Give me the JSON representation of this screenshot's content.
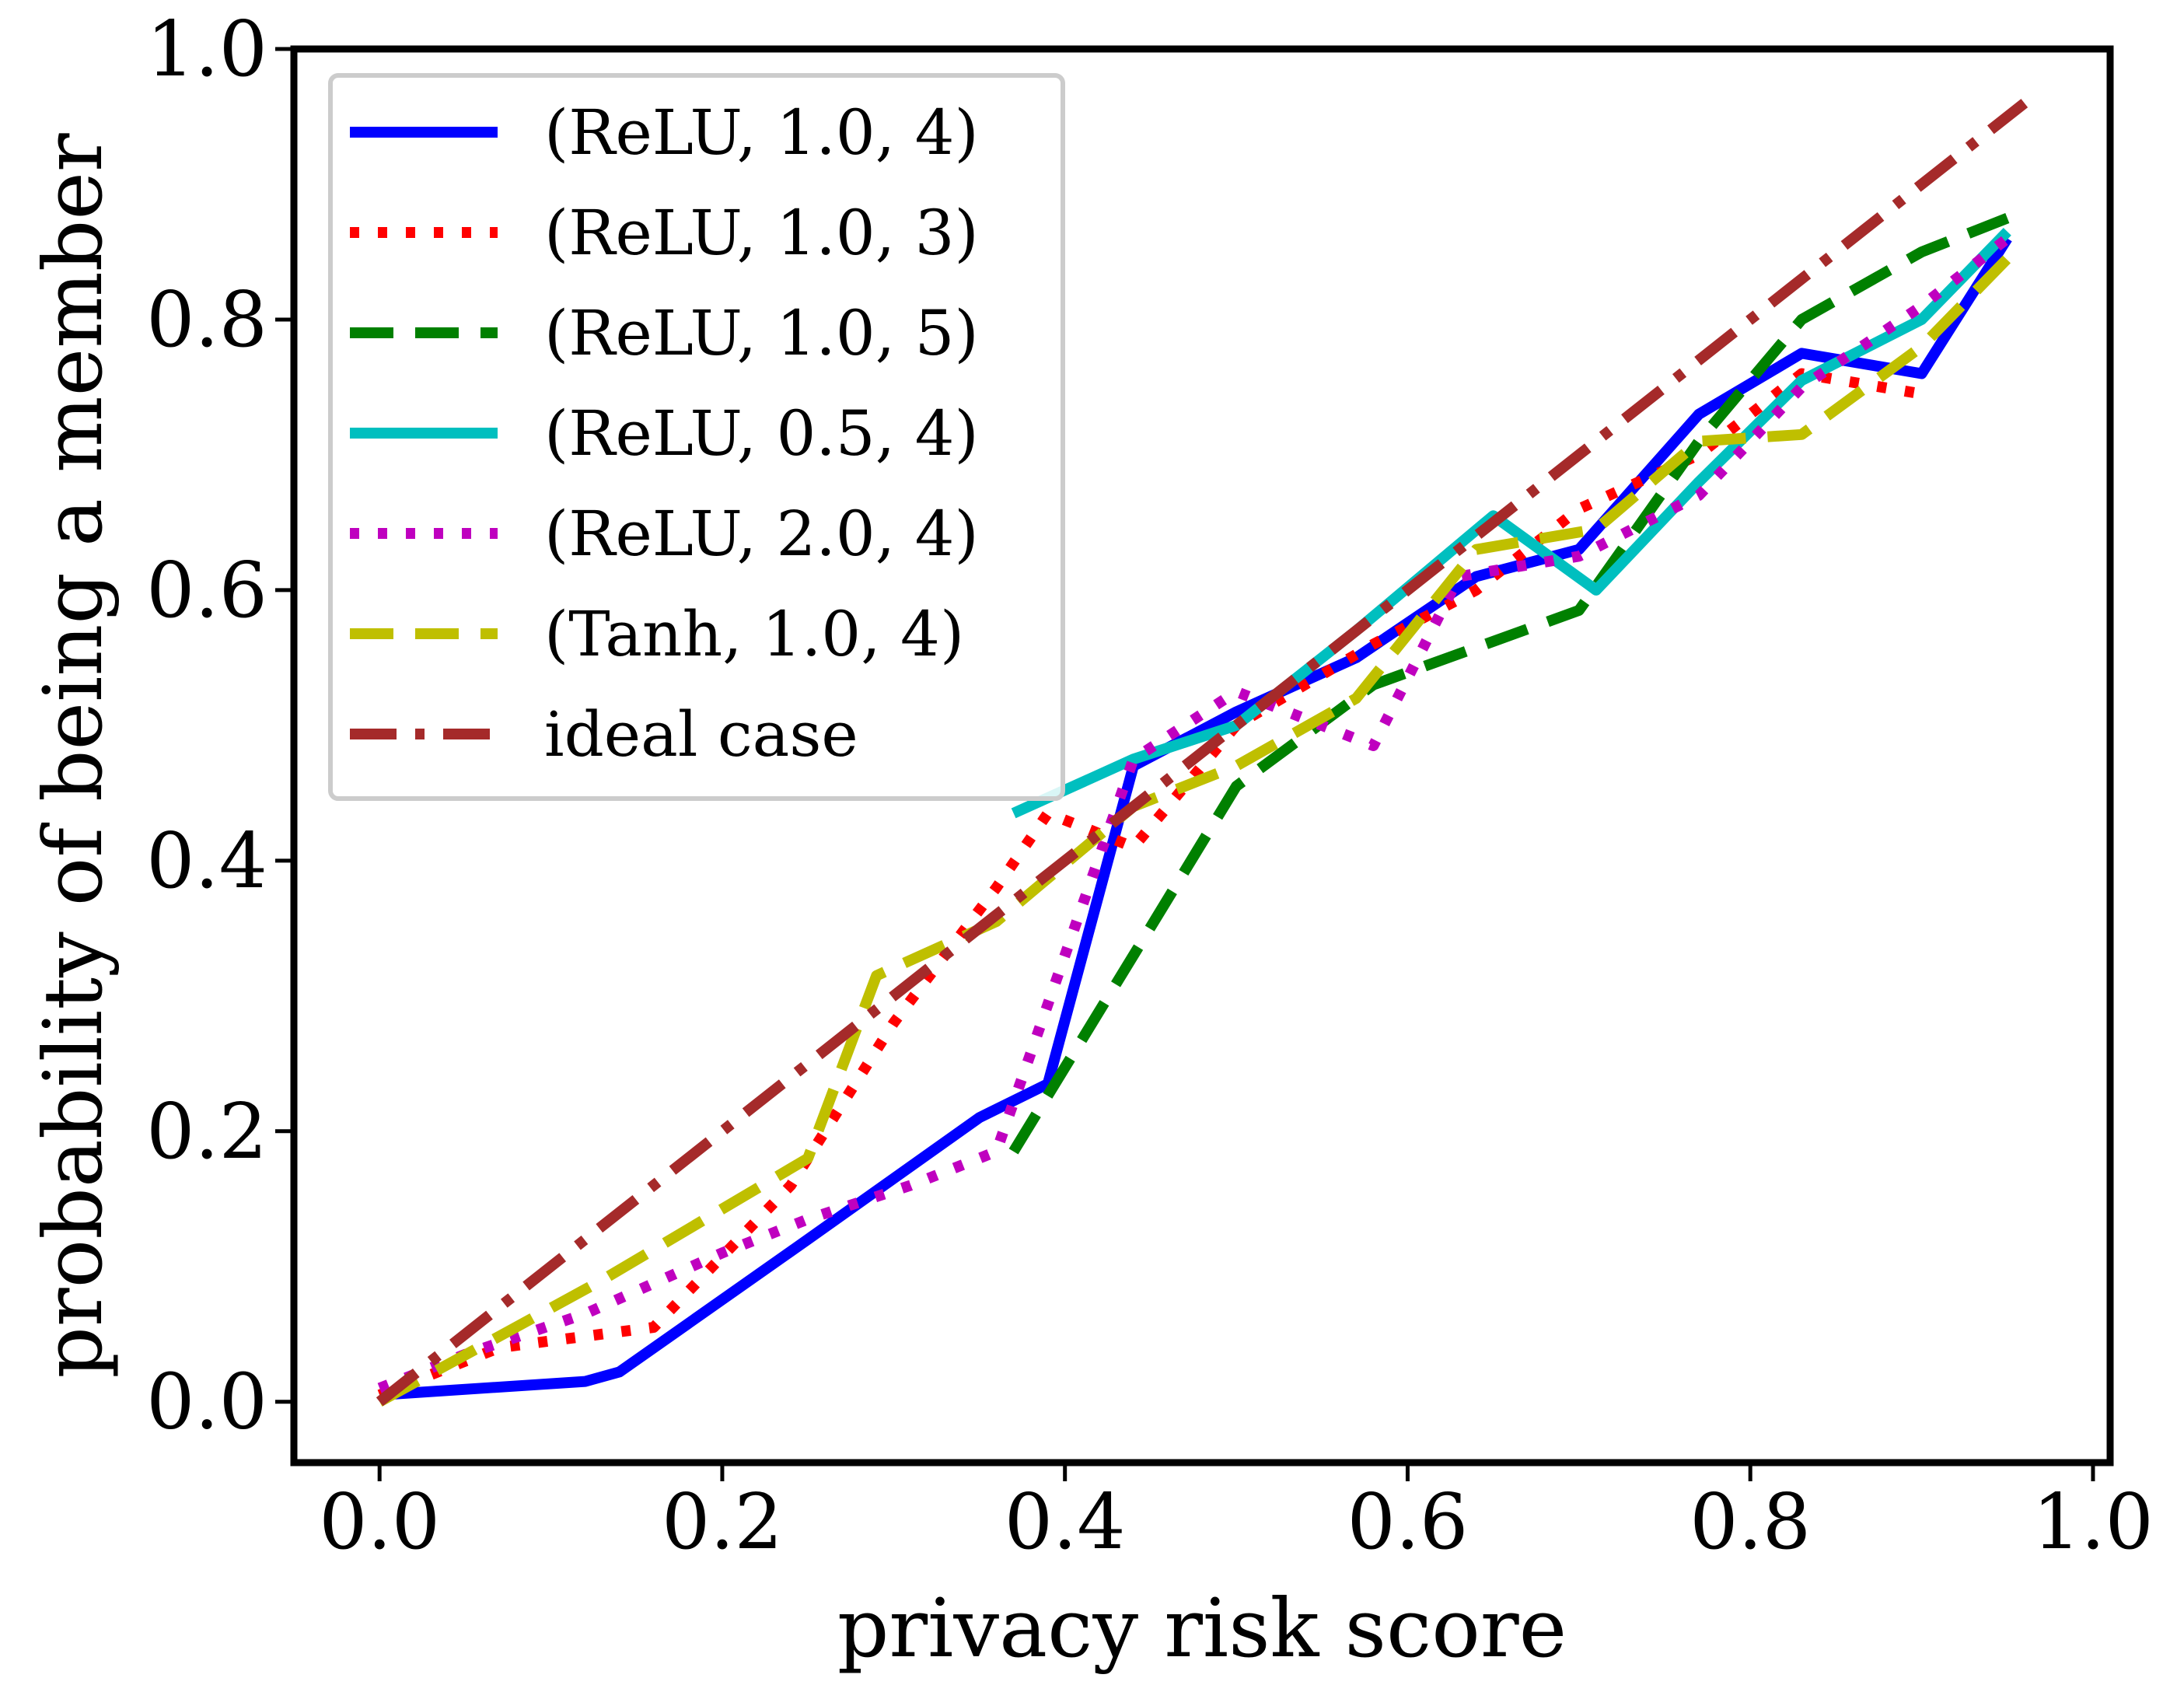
{
  "chart_data": {
    "type": "line",
    "title": "",
    "xlabel": "privacy risk score",
    "ylabel": "probability of being a member",
    "xlim": [
      -0.05,
      1.01
    ],
    "ylim": [
      -0.045,
      1.0
    ],
    "xticks": [
      0.0,
      0.2,
      0.4,
      0.6,
      0.8,
      1.0
    ],
    "yticks": [
      0.0,
      0.2,
      0.4,
      0.6,
      0.8,
      1.0
    ],
    "xtick_labels": [
      "0.0",
      "0.2",
      "0.4",
      "0.6",
      "0.8",
      "1.0"
    ],
    "ytick_labels": [
      "0.0",
      "0.2",
      "0.4",
      "0.6",
      "0.8",
      "1.0"
    ],
    "grid": false,
    "legend_position": "top-left",
    "series": [
      {
        "name": "(ReLU, 1.0, 4)",
        "color": "#0000ff",
        "style": "solid",
        "x": [
          0.0,
          0.12,
          0.14,
          0.25,
          0.3,
          0.35,
          0.39,
          0.44,
          0.5,
          0.57,
          0.64,
          0.7,
          0.77,
          0.83,
          0.9,
          0.95
        ],
        "y": [
          0.005,
          0.015,
          0.022,
          0.12,
          0.165,
          0.21,
          0.235,
          0.47,
          0.51,
          0.55,
          0.61,
          0.63,
          0.73,
          0.775,
          0.76,
          0.86
        ]
      },
      {
        "name": "(ReLU, 1.0, 3)",
        "color": "#ff0000",
        "style": "dotted",
        "x": [
          0.0,
          0.07,
          0.16,
          0.24,
          0.3,
          0.36,
          0.39,
          0.44,
          0.5,
          0.58,
          0.64,
          0.7,
          0.77,
          0.83,
          0.9
        ],
        "y": [
          0.005,
          0.04,
          0.055,
          0.16,
          0.28,
          0.38,
          0.435,
          0.41,
          0.5,
          0.56,
          0.6,
          0.66,
          0.7,
          0.76,
          0.745
        ]
      },
      {
        "name": "(ReLU, 1.0, 5)",
        "color": "#008000",
        "style": "dashed",
        "x": [
          0.37,
          0.44,
          0.5,
          0.58,
          0.7,
          0.77,
          0.83,
          0.9,
          0.95
        ],
        "y": [
          0.185,
          0.33,
          0.455,
          0.53,
          0.585,
          0.71,
          0.8,
          0.85,
          0.875
        ]
      },
      {
        "name": "(ReLU, 0.5, 4)",
        "color": "#00bfbf",
        "style": "solid",
        "x": [
          0.37,
          0.44,
          0.5,
          0.57,
          0.65,
          0.71,
          0.77,
          0.83,
          0.9,
          0.95
        ],
        "y": [
          0.435,
          0.475,
          0.5,
          0.57,
          0.655,
          0.6,
          0.68,
          0.755,
          0.8,
          0.865
        ]
      },
      {
        "name": "(ReLU, 2.0, 4)",
        "color": "#bf00bf",
        "style": "dotted",
        "x": [
          0.0,
          0.05,
          0.12,
          0.2,
          0.25,
          0.31,
          0.36,
          0.4,
          0.44,
          0.5,
          0.58,
          0.63,
          0.7,
          0.77,
          0.83,
          0.9,
          0.95
        ],
        "y": [
          0.01,
          0.035,
          0.065,
          0.11,
          0.135,
          0.16,
          0.185,
          0.33,
          0.475,
          0.525,
          0.485,
          0.61,
          0.625,
          0.67,
          0.75,
          0.81,
          0.86
        ]
      },
      {
        "name": "(Tanh, 1.0, 4)",
        "color": "#bfbf00",
        "style": "dashed",
        "x": [
          0.0,
          0.13,
          0.25,
          0.29,
          0.36,
          0.44,
          0.5,
          0.57,
          0.64,
          0.71,
          0.77,
          0.83,
          0.9,
          0.95
        ],
        "y": [
          0.0,
          0.09,
          0.18,
          0.315,
          0.355,
          0.44,
          0.47,
          0.52,
          0.63,
          0.645,
          0.71,
          0.715,
          0.78,
          0.845
        ]
      },
      {
        "name": "ideal case",
        "color": "#a52a2a",
        "style": "dashdot",
        "x": [
          0.0,
          0.96
        ],
        "y": [
          0.0,
          0.96
        ]
      }
    ]
  }
}
